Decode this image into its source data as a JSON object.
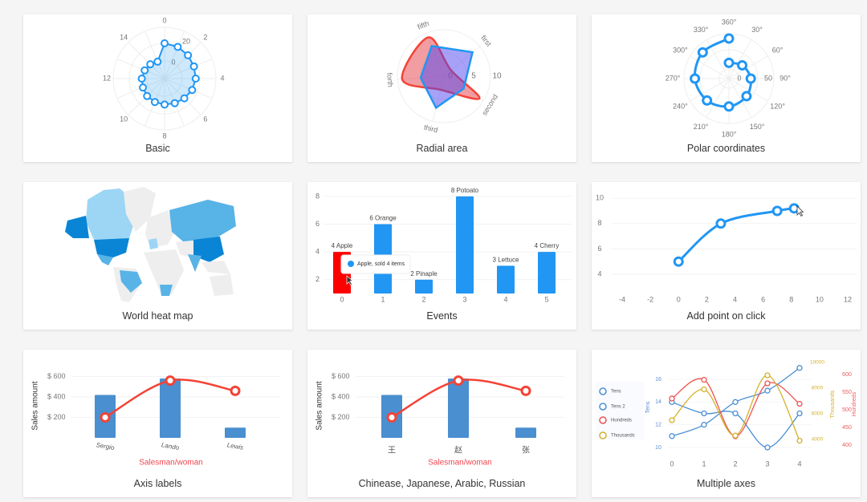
{
  "cards": [
    {
      "title": "Basic"
    },
    {
      "title": "Radial area"
    },
    {
      "title": "Polar coordinates"
    },
    {
      "title": "World heat map"
    },
    {
      "title": "Events"
    },
    {
      "title": "Add point on click"
    },
    {
      "title": "Axis labels"
    },
    {
      "title": "Chinease, Japanese, Arabic, Russian"
    },
    {
      "title": "Multiple axes"
    }
  ],
  "colors": {
    "blue": "#2196f3",
    "red": "#f44336",
    "bar_blue": "#4a8fcf",
    "gold": "#d4b02a",
    "heat_light": "#9dd6f5",
    "heat_mid": "#58b3e6",
    "heat_dark": "#0a85d6",
    "land": "#eeeeee"
  },
  "chart_data": [
    {
      "type": "radar",
      "title": "Basic",
      "angle_labels": [
        "0",
        "2",
        "4",
        "6",
        "8",
        "10",
        "12",
        "14"
      ],
      "radial_ticks": [
        "0",
        "20"
      ],
      "values": [
        13.75,
        13,
        12,
        11,
        10.5,
        9.5,
        8,
        7,
        6.5,
        6,
        5.5,
        4.5,
        4,
        3,
        2,
        0.5
      ]
    },
    {
      "type": "radar-area",
      "title": "Radial area",
      "axes": [
        "first",
        "second",
        "third",
        "forth",
        "fifth"
      ],
      "radial_ticks": [
        "0",
        "5",
        "10"
      ],
      "rmax": 10,
      "series": [
        {
          "name": "blue",
          "values": [
            8,
            5,
            7,
            5,
            7
          ]
        },
        {
          "name": "red",
          "values": [
            2,
            9,
            3,
            9,
            9
          ]
        }
      ]
    },
    {
      "type": "polar-line",
      "title": "Polar coordinates",
      "angle_labels": [
        "360°",
        "30°",
        "60°",
        "90°",
        "120°",
        "150°",
        "180°",
        "210°",
        "240°",
        "270°",
        "300°",
        "330°"
      ],
      "radial_ticks": [
        "0",
        "50"
      ],
      "points": [
        [
          0,
          10
        ],
        [
          45,
          15
        ],
        [
          90,
          20
        ],
        [
          135,
          25
        ],
        [
          180,
          30
        ],
        [
          225,
          35
        ],
        [
          270,
          40
        ],
        [
          315,
          45
        ],
        [
          360,
          50
        ]
      ]
    },
    {
      "type": "map",
      "title": "World heat map"
    },
    {
      "type": "bar",
      "title": "Events",
      "categories": [
        "0",
        "1",
        "2",
        "3",
        "4",
        "5"
      ],
      "values": [
        4,
        6,
        2,
        8,
        3,
        4
      ],
      "labels": [
        "4 Apple",
        "6 Orange",
        "2 Pinaple",
        "8 Potoato",
        "3 Lettuce",
        "4 Cherry"
      ],
      "yticks": [
        "2",
        "4",
        "6",
        "8"
      ],
      "ylim": [
        1,
        8
      ],
      "highlighted": 0,
      "tooltip": "Apple, sold 4 items"
    },
    {
      "type": "line",
      "title": "Add point on click",
      "points": [
        [
          0,
          5
        ],
        [
          3,
          8
        ],
        [
          7,
          9
        ],
        [
          8.2,
          9.2
        ]
      ],
      "xlim": [
        -4,
        12
      ],
      "ylim": [
        4,
        10
      ],
      "xticks": [
        "-4",
        "-2",
        "0",
        "2",
        "4",
        "6",
        "8",
        "10",
        "12"
      ],
      "yticks": [
        "4",
        "6",
        "8",
        "10"
      ]
    },
    {
      "type": "bar+line",
      "title": "Axis labels",
      "categories": [
        "Sergio",
        "Lando",
        "Lewis"
      ],
      "bars": [
        420,
        580,
        100
      ],
      "line": [
        200,
        560,
        460
      ],
      "yticks": [
        "$ 200",
        "$ 400",
        "$ 600"
      ],
      "ylabel": "Sales amount",
      "xlabel": "Salesman/woman",
      "ylim": [
        0,
        600
      ]
    },
    {
      "type": "bar+line",
      "title": "Chinease, Japanese, Arabic, Russian",
      "categories": [
        "王",
        "赵",
        "张"
      ],
      "bars": [
        420,
        580,
        100
      ],
      "line": [
        200,
        560,
        460
      ],
      "yticks": [
        "$ 200",
        "$ 400",
        "$ 600"
      ],
      "ylabel": "Sales amount",
      "xlabel": "Salesman/woman",
      "ylim": [
        0,
        600
      ]
    },
    {
      "type": "line",
      "title": "Multiple axes",
      "x": [
        "0",
        "1",
        "2",
        "3",
        "4"
      ],
      "series": [
        {
          "name": "Tens",
          "axis": "Tens",
          "values": [
            11,
            12,
            14,
            15,
            17
          ]
        },
        {
          "name": "Tens 2",
          "axis": "Tens",
          "values": [
            14,
            13,
            13,
            10,
            13
          ]
        },
        {
          "name": "Hundreds",
          "axis": "Hundreds",
          "values": [
            532,
            585,
            425,
            575,
            517
          ]
        },
        {
          "name": "Thousands",
          "axis": "Thousands",
          "values": [
            5500,
            7900,
            4300,
            9000,
            3900
          ]
        }
      ],
      "axes": {
        "Tens": {
          "ticks": [
            "10",
            "12",
            "14",
            "16"
          ],
          "lim": [
            10,
            16
          ]
        },
        "Thousands": {
          "ticks": [
            "4000",
            "6000",
            "8000",
            "10000"
          ],
          "lim": [
            4000,
            10000
          ]
        },
        "Hundreds": {
          "ticks": [
            "400",
            "450",
            "500",
            "550",
            "600"
          ],
          "lim": [
            400,
            600
          ]
        }
      }
    }
  ]
}
